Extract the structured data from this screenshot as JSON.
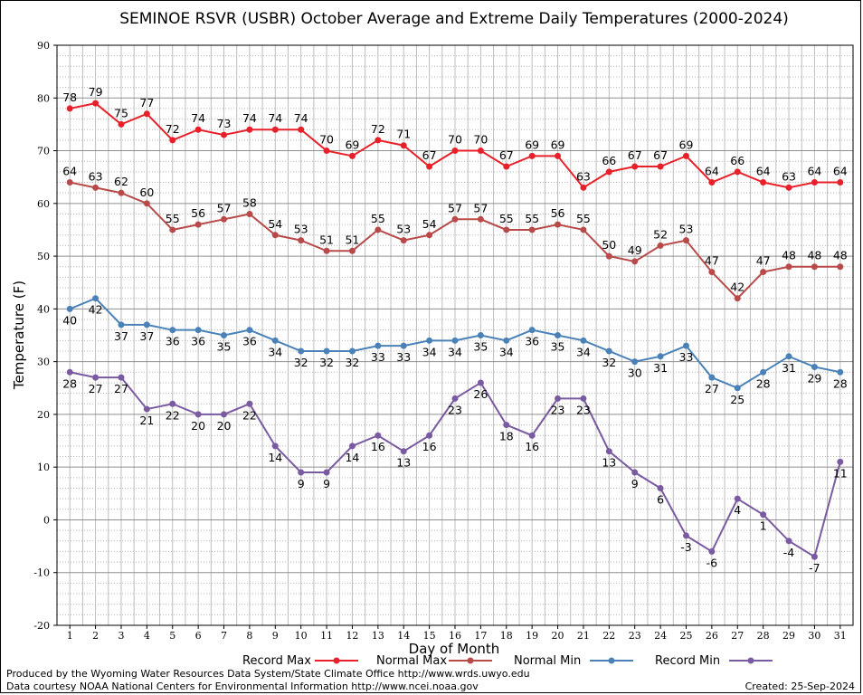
{
  "chart_data": {
    "type": "line",
    "title": "SEMINOE RSVR (USBR) October Average and Extreme Daily Temperatures (2000-2024)",
    "xlabel": "Day of Month",
    "ylabel": "Temperature (F)",
    "ylim": [
      -20,
      90
    ],
    "xlim": [
      0.5,
      31.5
    ],
    "grid": true,
    "legend_position": "bottom",
    "x": [
      1,
      2,
      3,
      4,
      5,
      6,
      7,
      8,
      9,
      10,
      11,
      12,
      13,
      14,
      15,
      16,
      17,
      18,
      19,
      20,
      21,
      22,
      23,
      24,
      25,
      26,
      27,
      28,
      29,
      30,
      31
    ],
    "y_ticks": [
      -20,
      -10,
      0,
      10,
      20,
      30,
      40,
      50,
      60,
      70,
      80,
      90
    ],
    "series": [
      {
        "name": "Record Max",
        "color": "#e8202a",
        "label_pos": "above",
        "values": [
          78,
          79,
          75,
          77,
          72,
          74,
          73,
          74,
          74,
          74,
          70,
          69,
          72,
          71,
          67,
          70,
          70,
          67,
          69,
          69,
          63,
          66,
          67,
          67,
          69,
          64,
          66,
          64,
          63,
          64,
          64
        ]
      },
      {
        "name": "Normal Max",
        "color": "#b84a4a",
        "label_pos": "above",
        "values": [
          64,
          63,
          62,
          60,
          55,
          56,
          57,
          58,
          54,
          53,
          51,
          51,
          55,
          53,
          54,
          57,
          57,
          55,
          55,
          56,
          55,
          50,
          49,
          52,
          53,
          47,
          42,
          47,
          48,
          48,
          48
        ]
      },
      {
        "name": "Normal Min",
        "color": "#4a82b8",
        "label_pos": "below",
        "values": [
          40,
          42,
          37,
          37,
          36,
          36,
          35,
          36,
          34,
          32,
          32,
          32,
          33,
          33,
          34,
          34,
          35,
          34,
          36,
          35,
          34,
          32,
          30,
          31,
          33,
          27,
          25,
          28,
          31,
          29,
          28
        ]
      },
      {
        "name": "Record Min",
        "color": "#7a5aa0",
        "label_pos": "below",
        "values": [
          28,
          27,
          27,
          21,
          22,
          20,
          20,
          22,
          14,
          9,
          9,
          14,
          16,
          13,
          16,
          23,
          26,
          18,
          16,
          23,
          23,
          13,
          9,
          6,
          -3,
          -6,
          4,
          1,
          -4,
          -7,
          11
        ]
      }
    ]
  },
  "footer": {
    "produced_by": "Produced by the Wyoming Water Resources Data System/State Climate Office http://www.wrds.uwyo.edu",
    "data_courtesy": "Data courtesy NOAA National Centers for Environmental Information http://www.ncei.noaa.gov",
    "created": "Created:  25-Sep-2024"
  }
}
